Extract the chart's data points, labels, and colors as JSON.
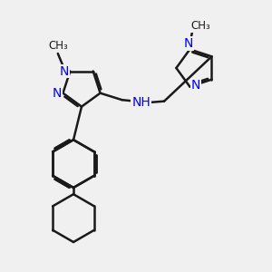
{
  "bg_color": "#f0f0f0",
  "bond_color": "#1a1a1a",
  "n_color": "#0000ff",
  "line_width": 1.8,
  "font_size": 10,
  "fig_size": [
    3.0,
    3.0
  ],
  "dpi": 100,
  "xlim": [
    0,
    10
  ],
  "ylim": [
    0,
    10
  ]
}
